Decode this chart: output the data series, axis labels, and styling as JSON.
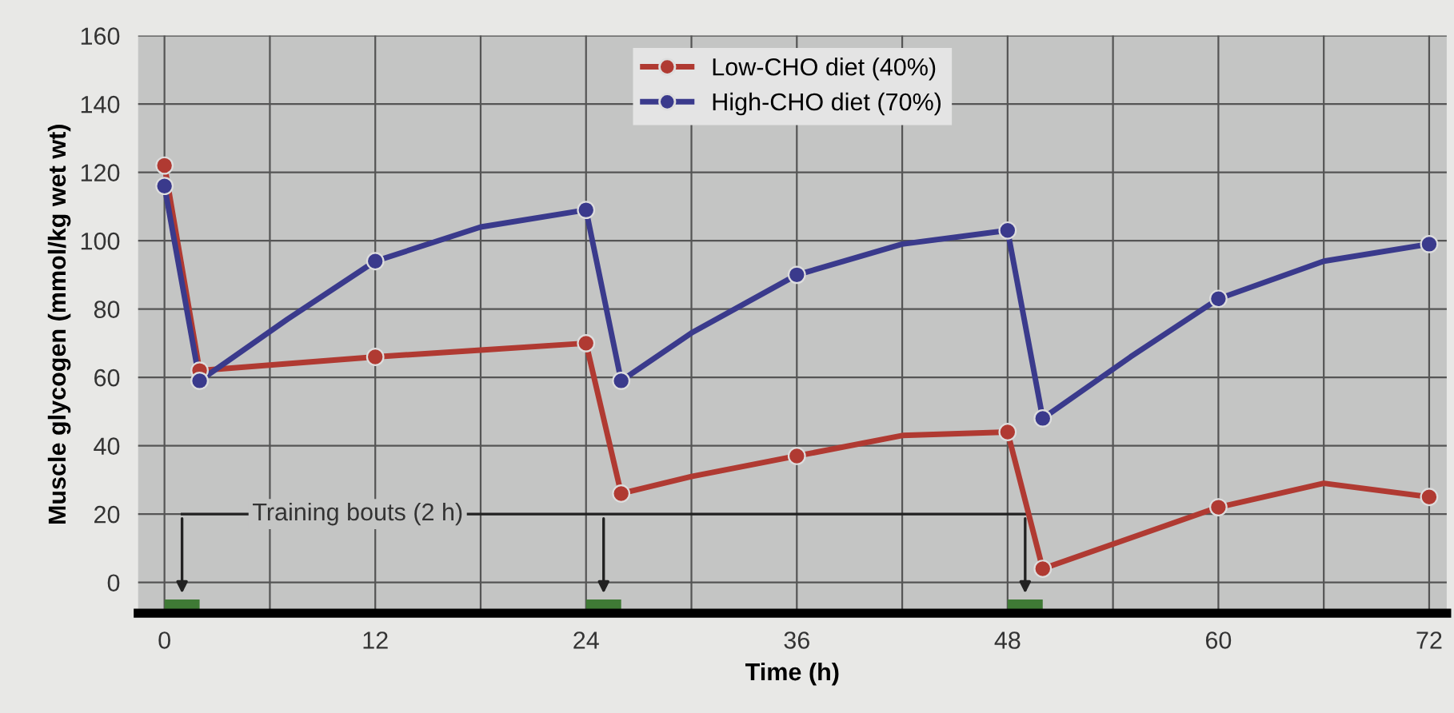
{
  "chart_data": {
    "type": "line",
    "xlabel": "Time (h)",
    "ylabel": "Muscle glycogen (mmol/kg wet wt)",
    "xlim": [
      -1.5,
      73
    ],
    "ylim": [
      -9,
      160
    ],
    "xticks": [
      0,
      {
        "value": 6,
        "label": null
      },
      12,
      {
        "value": 18,
        "label": null
      },
      24,
      {
        "value": 30,
        "label": null
      },
      36,
      {
        "value": 42,
        "label": null
      },
      48,
      {
        "value": 54,
        "label": null
      },
      60,
      {
        "value": 66,
        "label": null
      },
      72
    ],
    "yticks": [
      0,
      20,
      40,
      60,
      80,
      100,
      120,
      140,
      160
    ],
    "grid": true,
    "legend": "top",
    "line_style": "solid",
    "series": [
      {
        "name": "Low-CHO diet (40%)",
        "color": "#b03a32",
        "x": [
          0,
          2,
          7,
          12,
          18,
          24,
          26,
          30,
          36,
          42,
          48,
          50,
          55,
          60,
          66,
          72
        ],
        "values": [
          122,
          62,
          64,
          66,
          68,
          70,
          26,
          31,
          37,
          43,
          44,
          4,
          13,
          22,
          29,
          25
        ]
      },
      {
        "name": "High-CHO diet (70%)",
        "color": "#3a3a8c",
        "x": [
          0,
          2,
          7,
          12,
          18,
          24,
          26,
          30,
          36,
          42,
          48,
          50,
          55,
          60,
          66,
          72
        ],
        "values": [
          116,
          59,
          77,
          94,
          104,
          109,
          59,
          73,
          90,
          99,
          103,
          48,
          66,
          83,
          94,
          99
        ]
      },
      {
        "color": "#b03a32",
        "type": "scatter",
        "marker": "circle",
        "x": [
          0,
          2,
          12,
          24,
          26,
          36,
          48,
          50,
          60,
          72
        ],
        "values": [
          122,
          62,
          66,
          70,
          26,
          37,
          44,
          4,
          22,
          25
        ]
      },
      {
        "color": "#3a3a8c",
        "type": "scatter",
        "marker": "circle",
        "x": [
          0,
          2,
          12,
          24,
          26,
          36,
          48,
          50,
          60,
          72
        ],
        "values": [
          116,
          59,
          94,
          109,
          59,
          90,
          103,
          48,
          83,
          99
        ]
      }
    ],
    "annotations": [
      "Training bouts (2 h)"
    ]
  }
}
